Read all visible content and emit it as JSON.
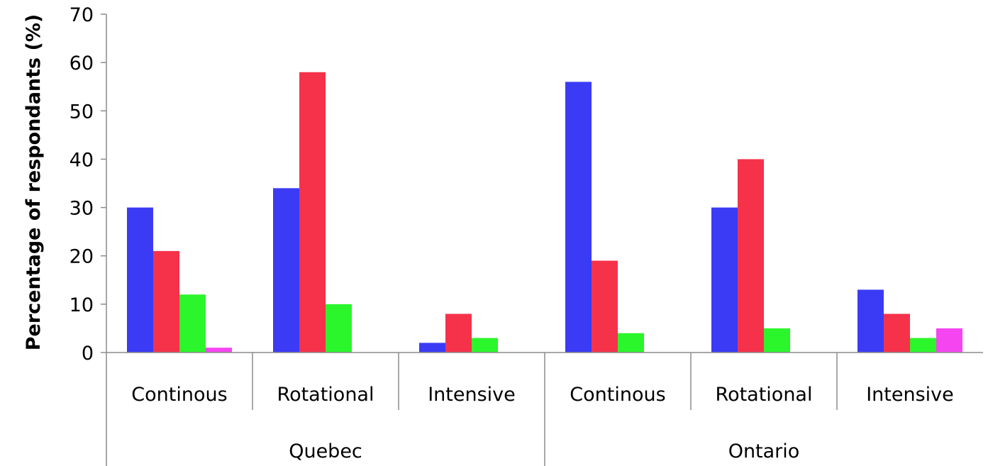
{
  "chart_data": {
    "type": "bar",
    "title": "",
    "xlabel": "",
    "ylabel": "Percentage of respondants (%)",
    "ylim": [
      0,
      70
    ],
    "yticks": [
      0,
      10,
      20,
      30,
      40,
      50,
      60,
      70
    ],
    "grid": false,
    "legend": "none",
    "groups": [
      {
        "label": "Quebec",
        "categories": [
          "Continous",
          "Rotational",
          "Intensive"
        ]
      },
      {
        "label": "Ontario",
        "categories": [
          "Continous",
          "Rotational",
          "Intensive"
        ]
      }
    ],
    "series": [
      {
        "color": "#3b3bf5",
        "values": [
          30,
          34,
          2,
          56,
          30,
          13
        ]
      },
      {
        "color": "#f5324a",
        "values": [
          21,
          58,
          8,
          19,
          40,
          8
        ]
      },
      {
        "color": "#2bf52b",
        "values": [
          12,
          10,
          3,
          4,
          5,
          3
        ]
      },
      {
        "color": "#f545f0",
        "values": [
          1,
          0,
          0,
          0,
          0,
          5
        ]
      }
    ]
  }
}
